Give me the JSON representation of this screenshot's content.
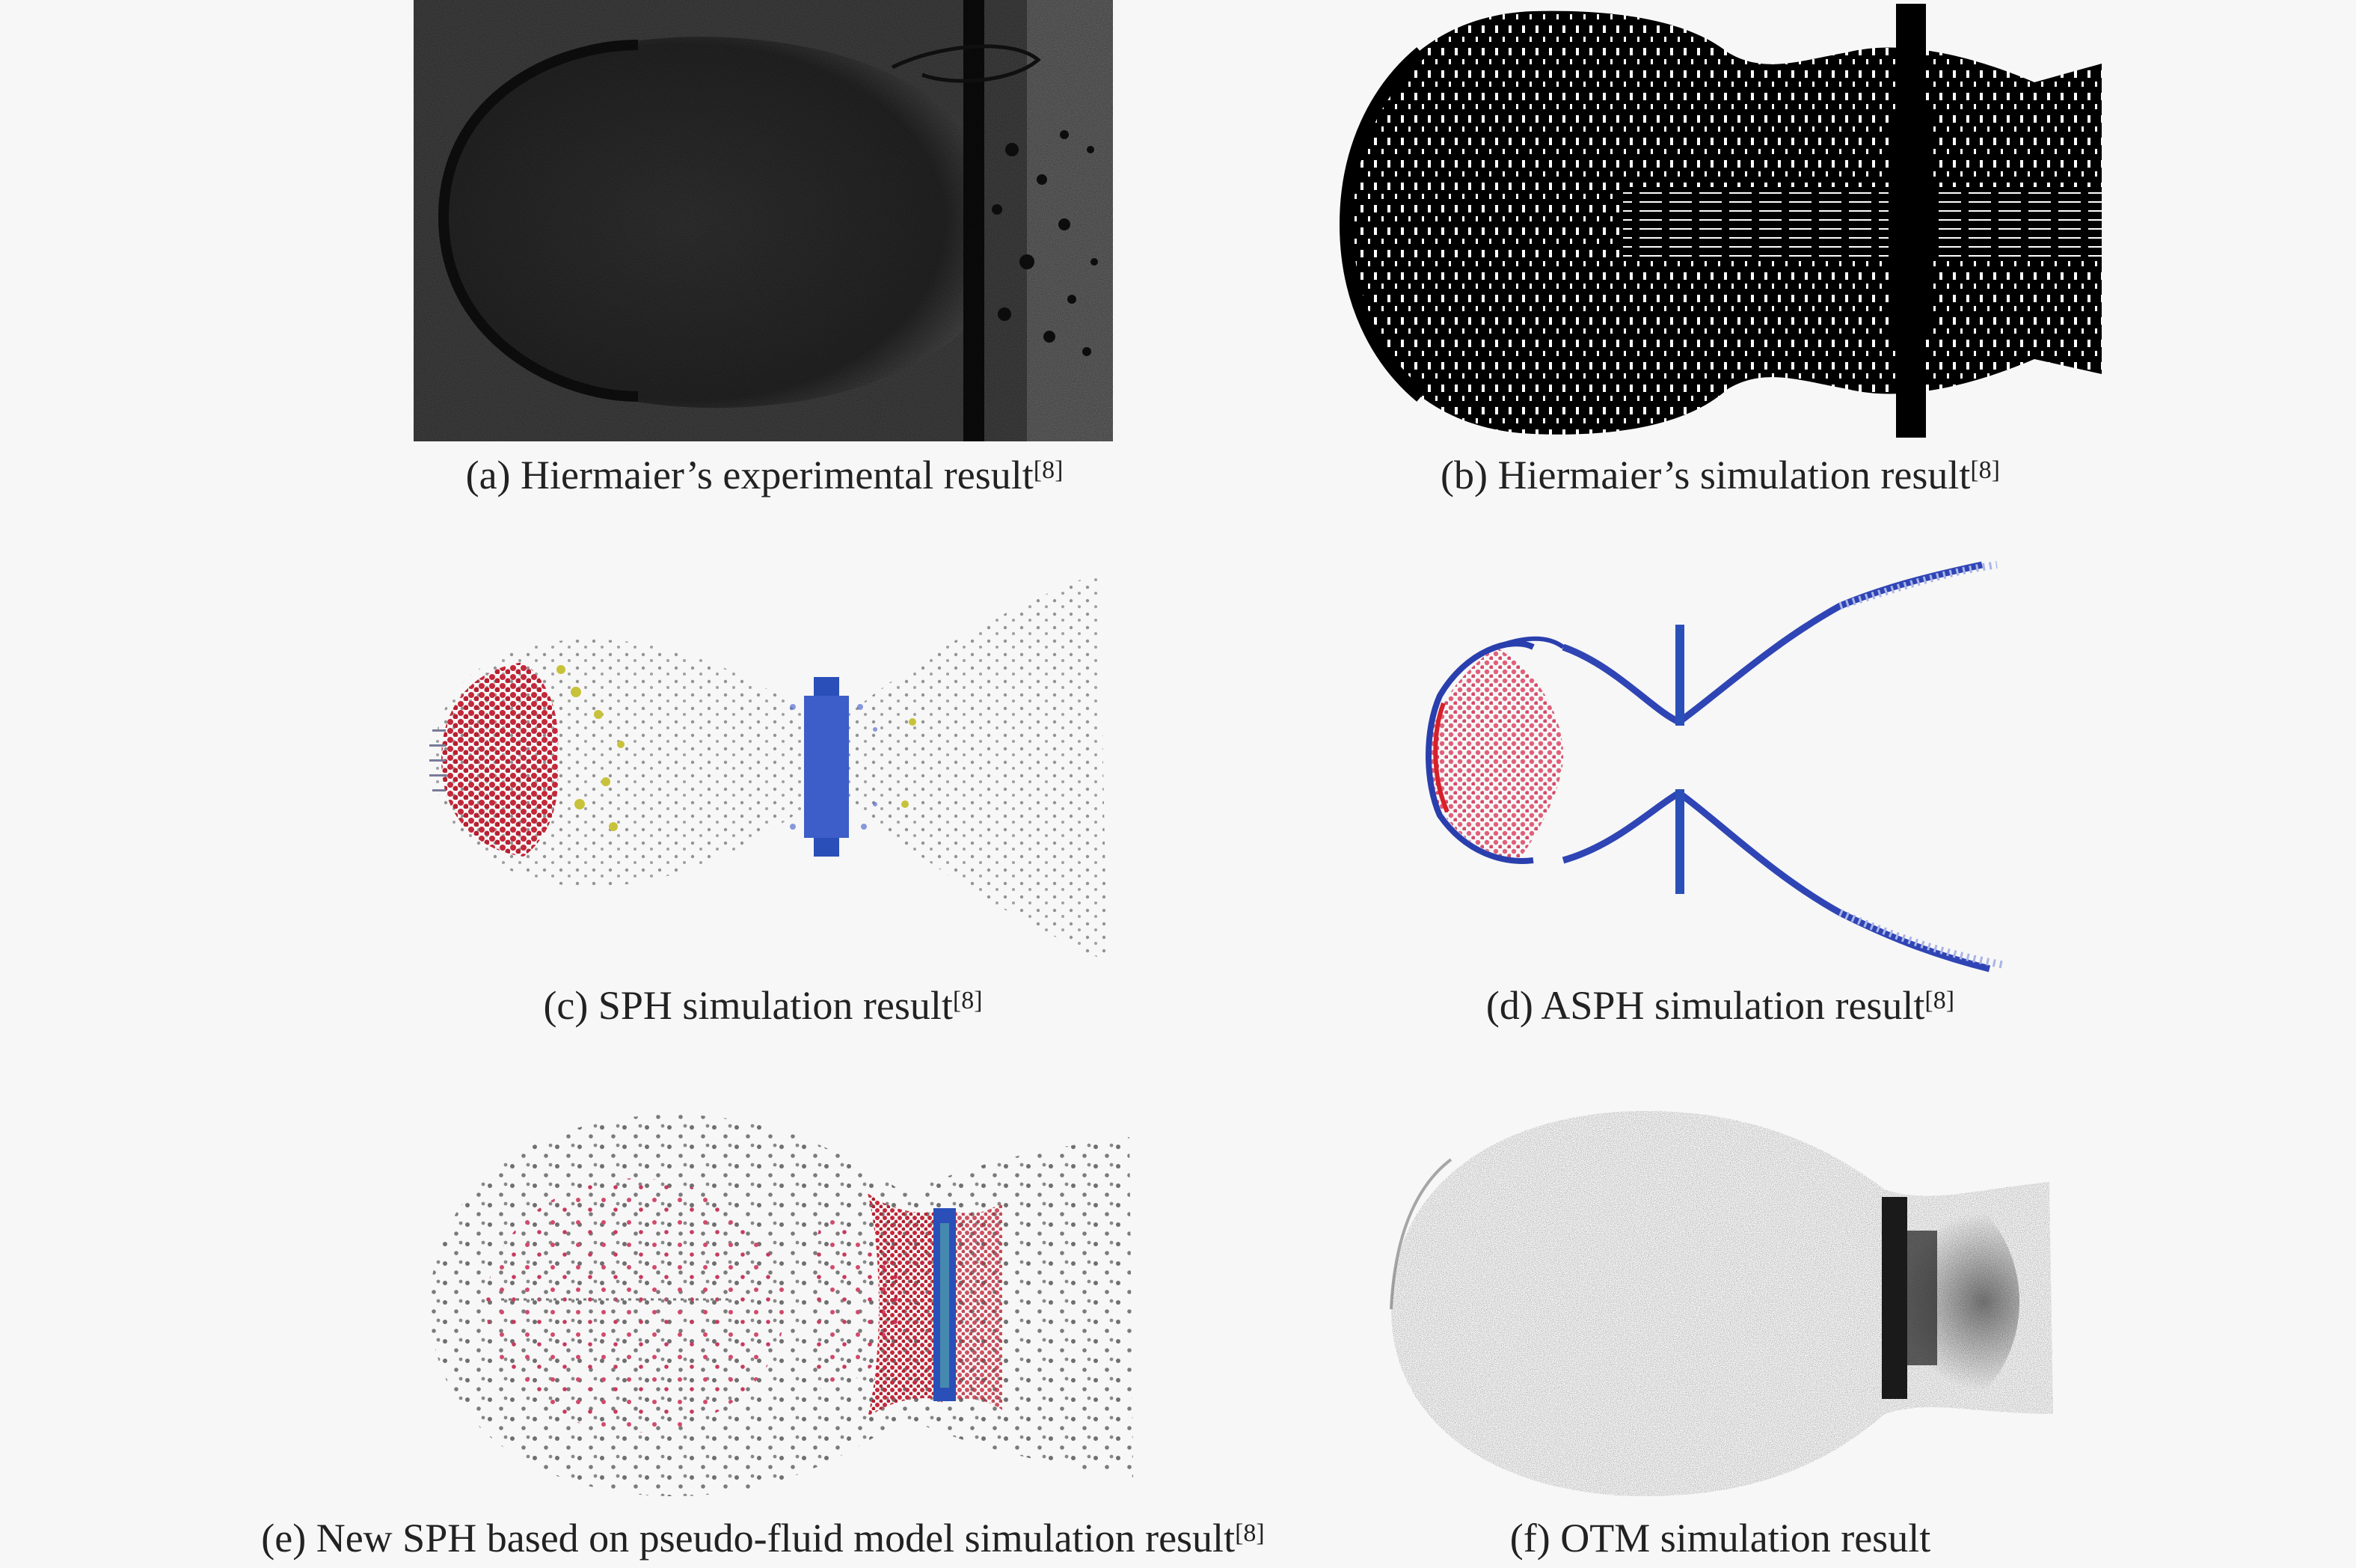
{
  "figure": {
    "panels": [
      {
        "id": "a",
        "caption": "(a) Hiermaier’s experimental result",
        "ref": "[8]"
      },
      {
        "id": "b",
        "caption": "(b) Hiermaier’s simulation result",
        "ref": "[8]"
      },
      {
        "id": "c",
        "caption": "(c) SPH simulation result",
        "ref": "[8]"
      },
      {
        "id": "d",
        "caption": "(d) ASPH simulation result",
        "ref": "[8]"
      },
      {
        "id": "e",
        "caption": "(e) New SPH based on pseudo-fluid model simulation result",
        "ref": "[8]"
      },
      {
        "id": "f",
        "caption": "(f) OTM simulation result",
        "ref": ""
      }
    ]
  },
  "colors": {
    "background": "#f7f7f7",
    "photo_dark": "#1e1e1e",
    "particle_red": "#c4283a",
    "particle_pink": "#e0607a",
    "particle_gray": "#6f6f6f",
    "plate_blue": "#2a4fb8",
    "particle_yellow": "#c8c23a"
  }
}
